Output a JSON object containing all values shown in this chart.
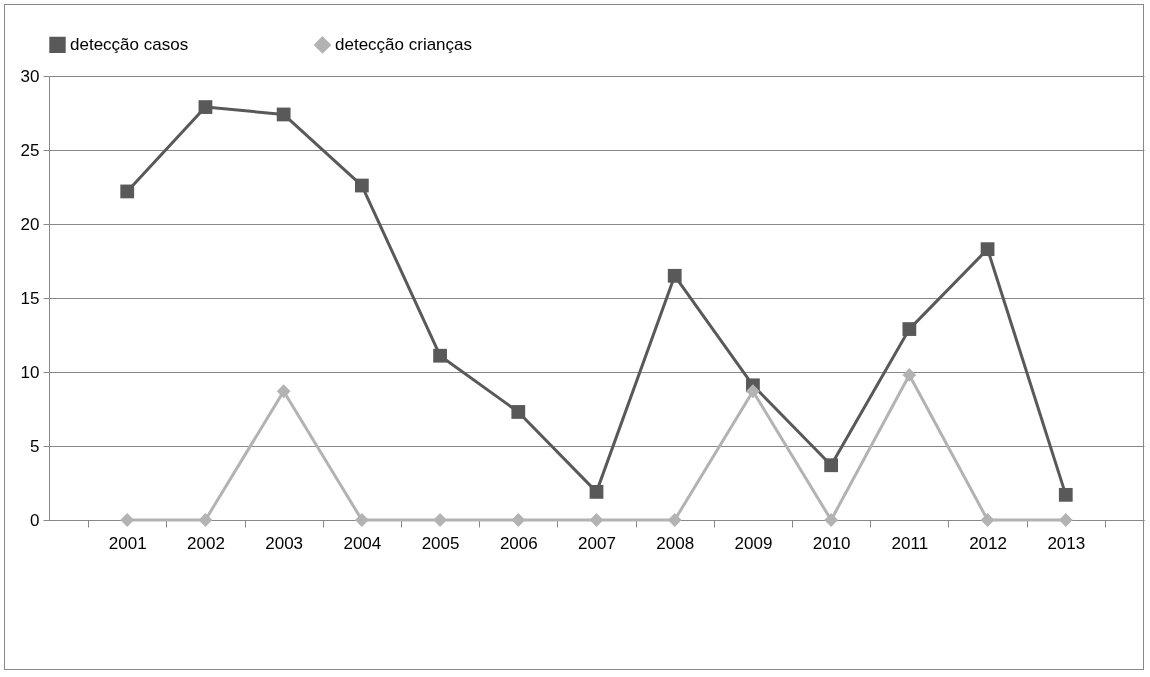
{
  "chart_data": {
    "type": "line",
    "categories": [
      "2001",
      "2002",
      "2003",
      "2004",
      "2005",
      "2006",
      "2007",
      "2008",
      "2009",
      "2010",
      "2011",
      "2012",
      "2013"
    ],
    "series": [
      {
        "name": "detecção casos",
        "color": "#595959",
        "marker": "square",
        "values": [
          22.2,
          27.9,
          27.4,
          22.6,
          11.1,
          7.3,
          1.9,
          16.5,
          9.1,
          3.7,
          12.9,
          18.3,
          1.7
        ]
      },
      {
        "name": "detecção crianças",
        "color": "#b3b3b3",
        "marker": "diamond",
        "values": [
          0,
          0,
          8.7,
          0,
          0,
          0,
          0,
          0,
          8.7,
          0,
          9.8,
          0,
          0
        ]
      }
    ],
    "ylim": [
      0,
      30
    ],
    "yticks": [
      0,
      5,
      10,
      15,
      20,
      25,
      30
    ],
    "grid": "y",
    "legend": "top",
    "line_style": "solid"
  }
}
